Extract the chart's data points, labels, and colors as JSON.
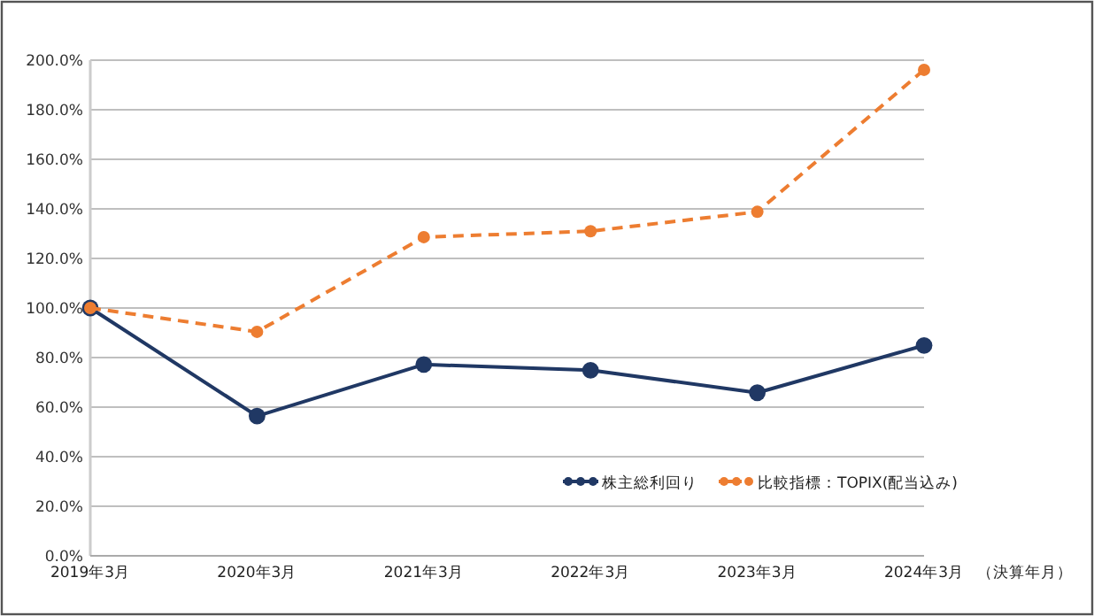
{
  "chart_data": {
    "type": "line",
    "xlabel": "（決算年月）",
    "categories": [
      "2019年3月",
      "2020年3月",
      "2021年3月",
      "2022年3月",
      "2023年3月",
      "2024年3月"
    ],
    "series": [
      {
        "name": "株主総利回り",
        "color": "#203864",
        "line_style": "solid",
        "values": [
          100,
          56.4,
          77.2,
          74.9,
          65.8,
          84.9
        ]
      },
      {
        "name": "比較指標：TOPIX(配当込み)",
        "color": "#ed7d31",
        "line_style": "dashed",
        "values": [
          100,
          90.4,
          128.6,
          131.0,
          138.8,
          196.1
        ]
      }
    ],
    "ylim": [
      0,
      200
    ],
    "yticks": [
      {
        "value": 0,
        "label": "0.0%"
      },
      {
        "value": 20,
        "label": "20.0%"
      },
      {
        "value": 40,
        "label": "40.0%"
      },
      {
        "value": 60,
        "label": "60.0%"
      },
      {
        "value": 80,
        "label": "80.0%"
      },
      {
        "value": 100,
        "label": "100.0%"
      },
      {
        "value": 120,
        "label": "120.0%"
      },
      {
        "value": 140,
        "label": "140.0%"
      },
      {
        "value": 160,
        "label": "160.0%"
      },
      {
        "value": 180,
        "label": "180.0%"
      },
      {
        "value": 200,
        "label": "200.0%"
      }
    ],
    "grid": "y",
    "legend": "bottom right",
    "marker": "circle"
  }
}
